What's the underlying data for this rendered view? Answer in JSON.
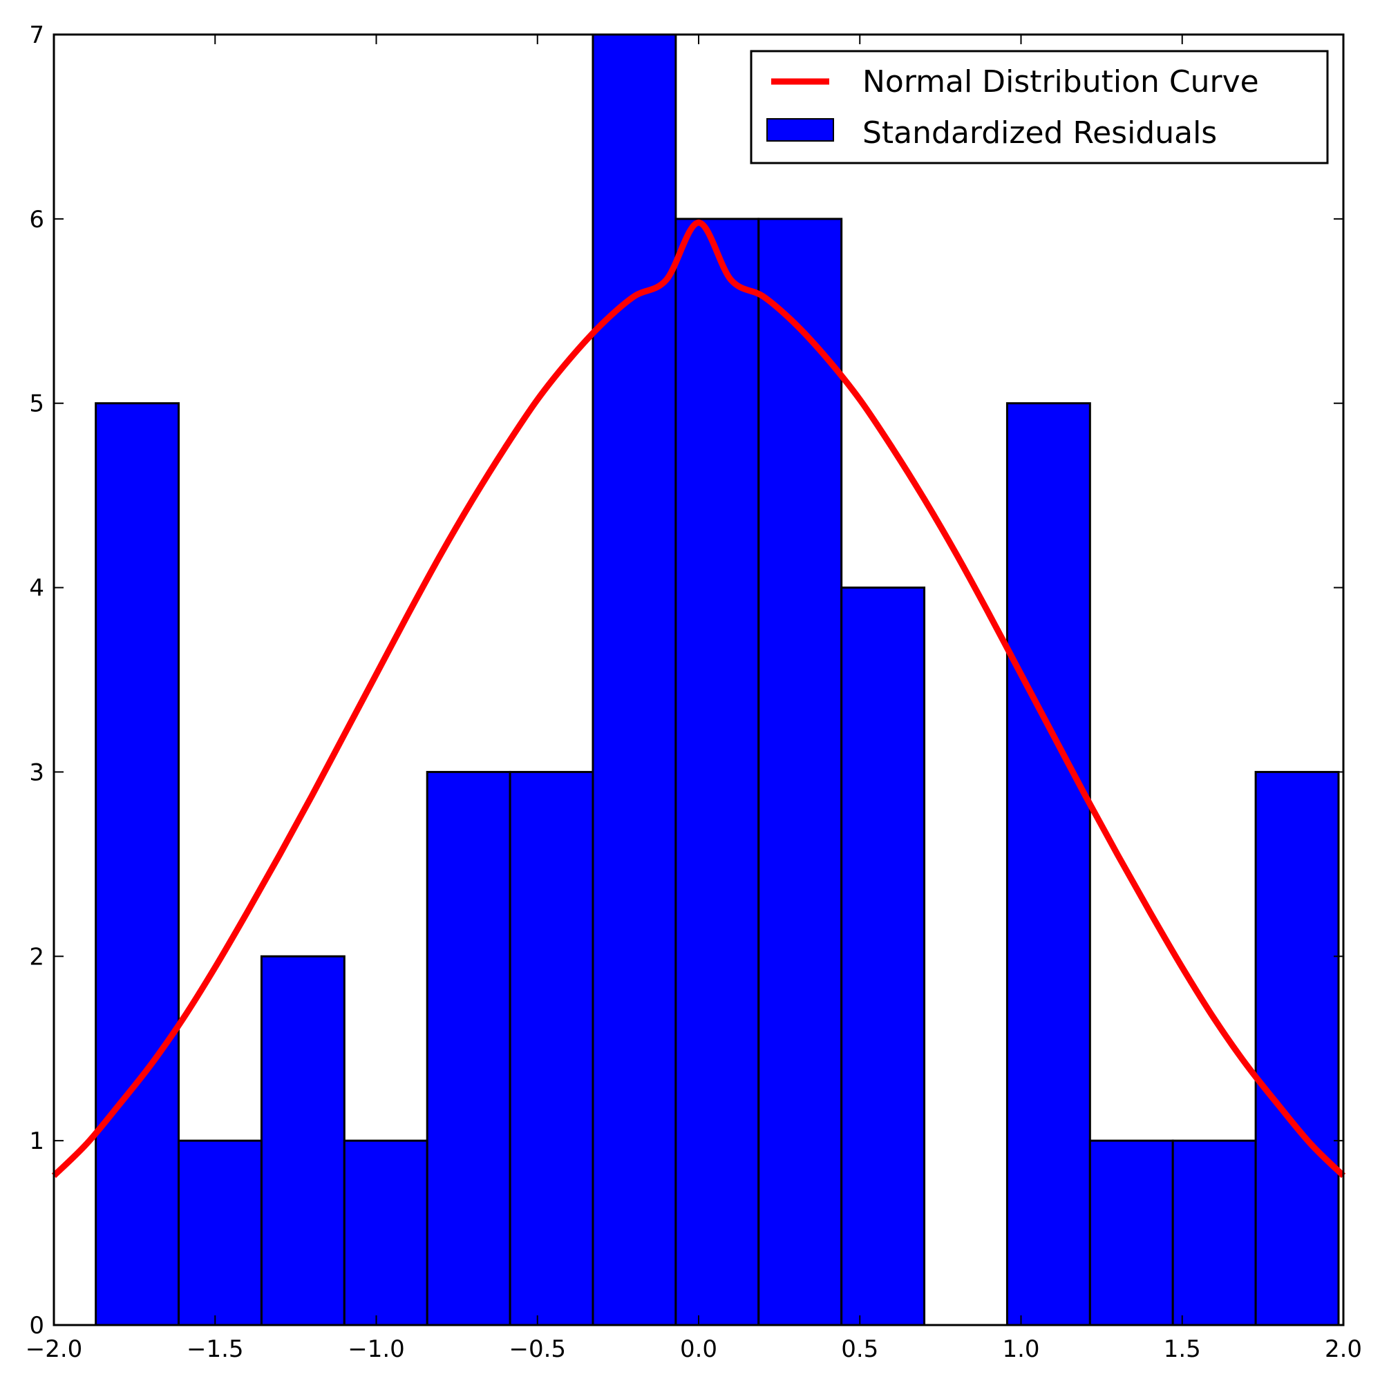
{
  "chart_data": {
    "type": "bar",
    "title": "",
    "xlabel": "",
    "ylabel": "",
    "xlim": [
      -2.0,
      2.0
    ],
    "ylim": [
      0,
      7
    ],
    "x_ticks": [
      -2.0,
      -1.5,
      -1.0,
      -0.5,
      0.0,
      0.5,
      1.0,
      1.5,
      2.0
    ],
    "x_tick_labels": [
      "−2.0",
      "−1.5",
      "−1.0",
      "−0.5",
      "0.0",
      "0.5",
      "1.0",
      "1.5",
      "2.0"
    ],
    "y_ticks": [
      0,
      1,
      2,
      3,
      4,
      5,
      6,
      7
    ],
    "y_tick_labels": [
      "0",
      "1",
      "2",
      "3",
      "4",
      "5",
      "6",
      "7"
    ],
    "grid": false,
    "legend_position": "top-right",
    "series": [
      {
        "name": "Standardized Residuals",
        "kind": "histogram",
        "color": "#0000ff",
        "edge_color": "#000000",
        "bin_edges": [
          -1.87,
          -1.613,
          -1.356,
          -1.099,
          -0.842,
          -0.585,
          -0.328,
          -0.071,
          0.186,
          0.443,
          0.7,
          0.957,
          1.214,
          1.471,
          1.728,
          1.985
        ],
        "values": [
          5,
          1,
          2,
          1,
          3,
          3,
          7,
          6,
          6,
          4,
          0,
          5,
          1,
          1,
          3
        ]
      },
      {
        "name": "Normal Distribution Curve",
        "kind": "line",
        "color": "#ff0000",
        "x": [
          -2.0,
          -1.9,
          -1.8,
          -1.7,
          -1.6,
          -1.5,
          -1.4,
          -1.3,
          -1.2,
          -1.1,
          -1.0,
          -0.9,
          -0.8,
          -0.7,
          -0.6,
          -0.5,
          -0.4,
          -0.3,
          -0.2,
          -0.1,
          0.0,
          0.1,
          0.2,
          0.3,
          0.4,
          0.5,
          0.6,
          0.7,
          0.8,
          0.9,
          1.0,
          1.1,
          1.2,
          1.3,
          1.4,
          1.5,
          1.6,
          1.7,
          1.8,
          1.9,
          2.0
        ],
        "y": [
          0.81,
          0.98,
          1.19,
          1.41,
          1.66,
          1.94,
          2.24,
          2.55,
          2.87,
          3.2,
          3.53,
          3.86,
          4.18,
          4.48,
          4.76,
          5.02,
          5.24,
          5.43,
          5.58,
          5.67,
          5.98,
          5.67,
          5.58,
          5.43,
          5.24,
          5.02,
          4.76,
          4.48,
          4.18,
          3.86,
          3.53,
          3.2,
          2.87,
          2.55,
          2.24,
          1.94,
          1.66,
          1.41,
          1.19,
          0.98,
          0.81
        ]
      }
    ]
  }
}
